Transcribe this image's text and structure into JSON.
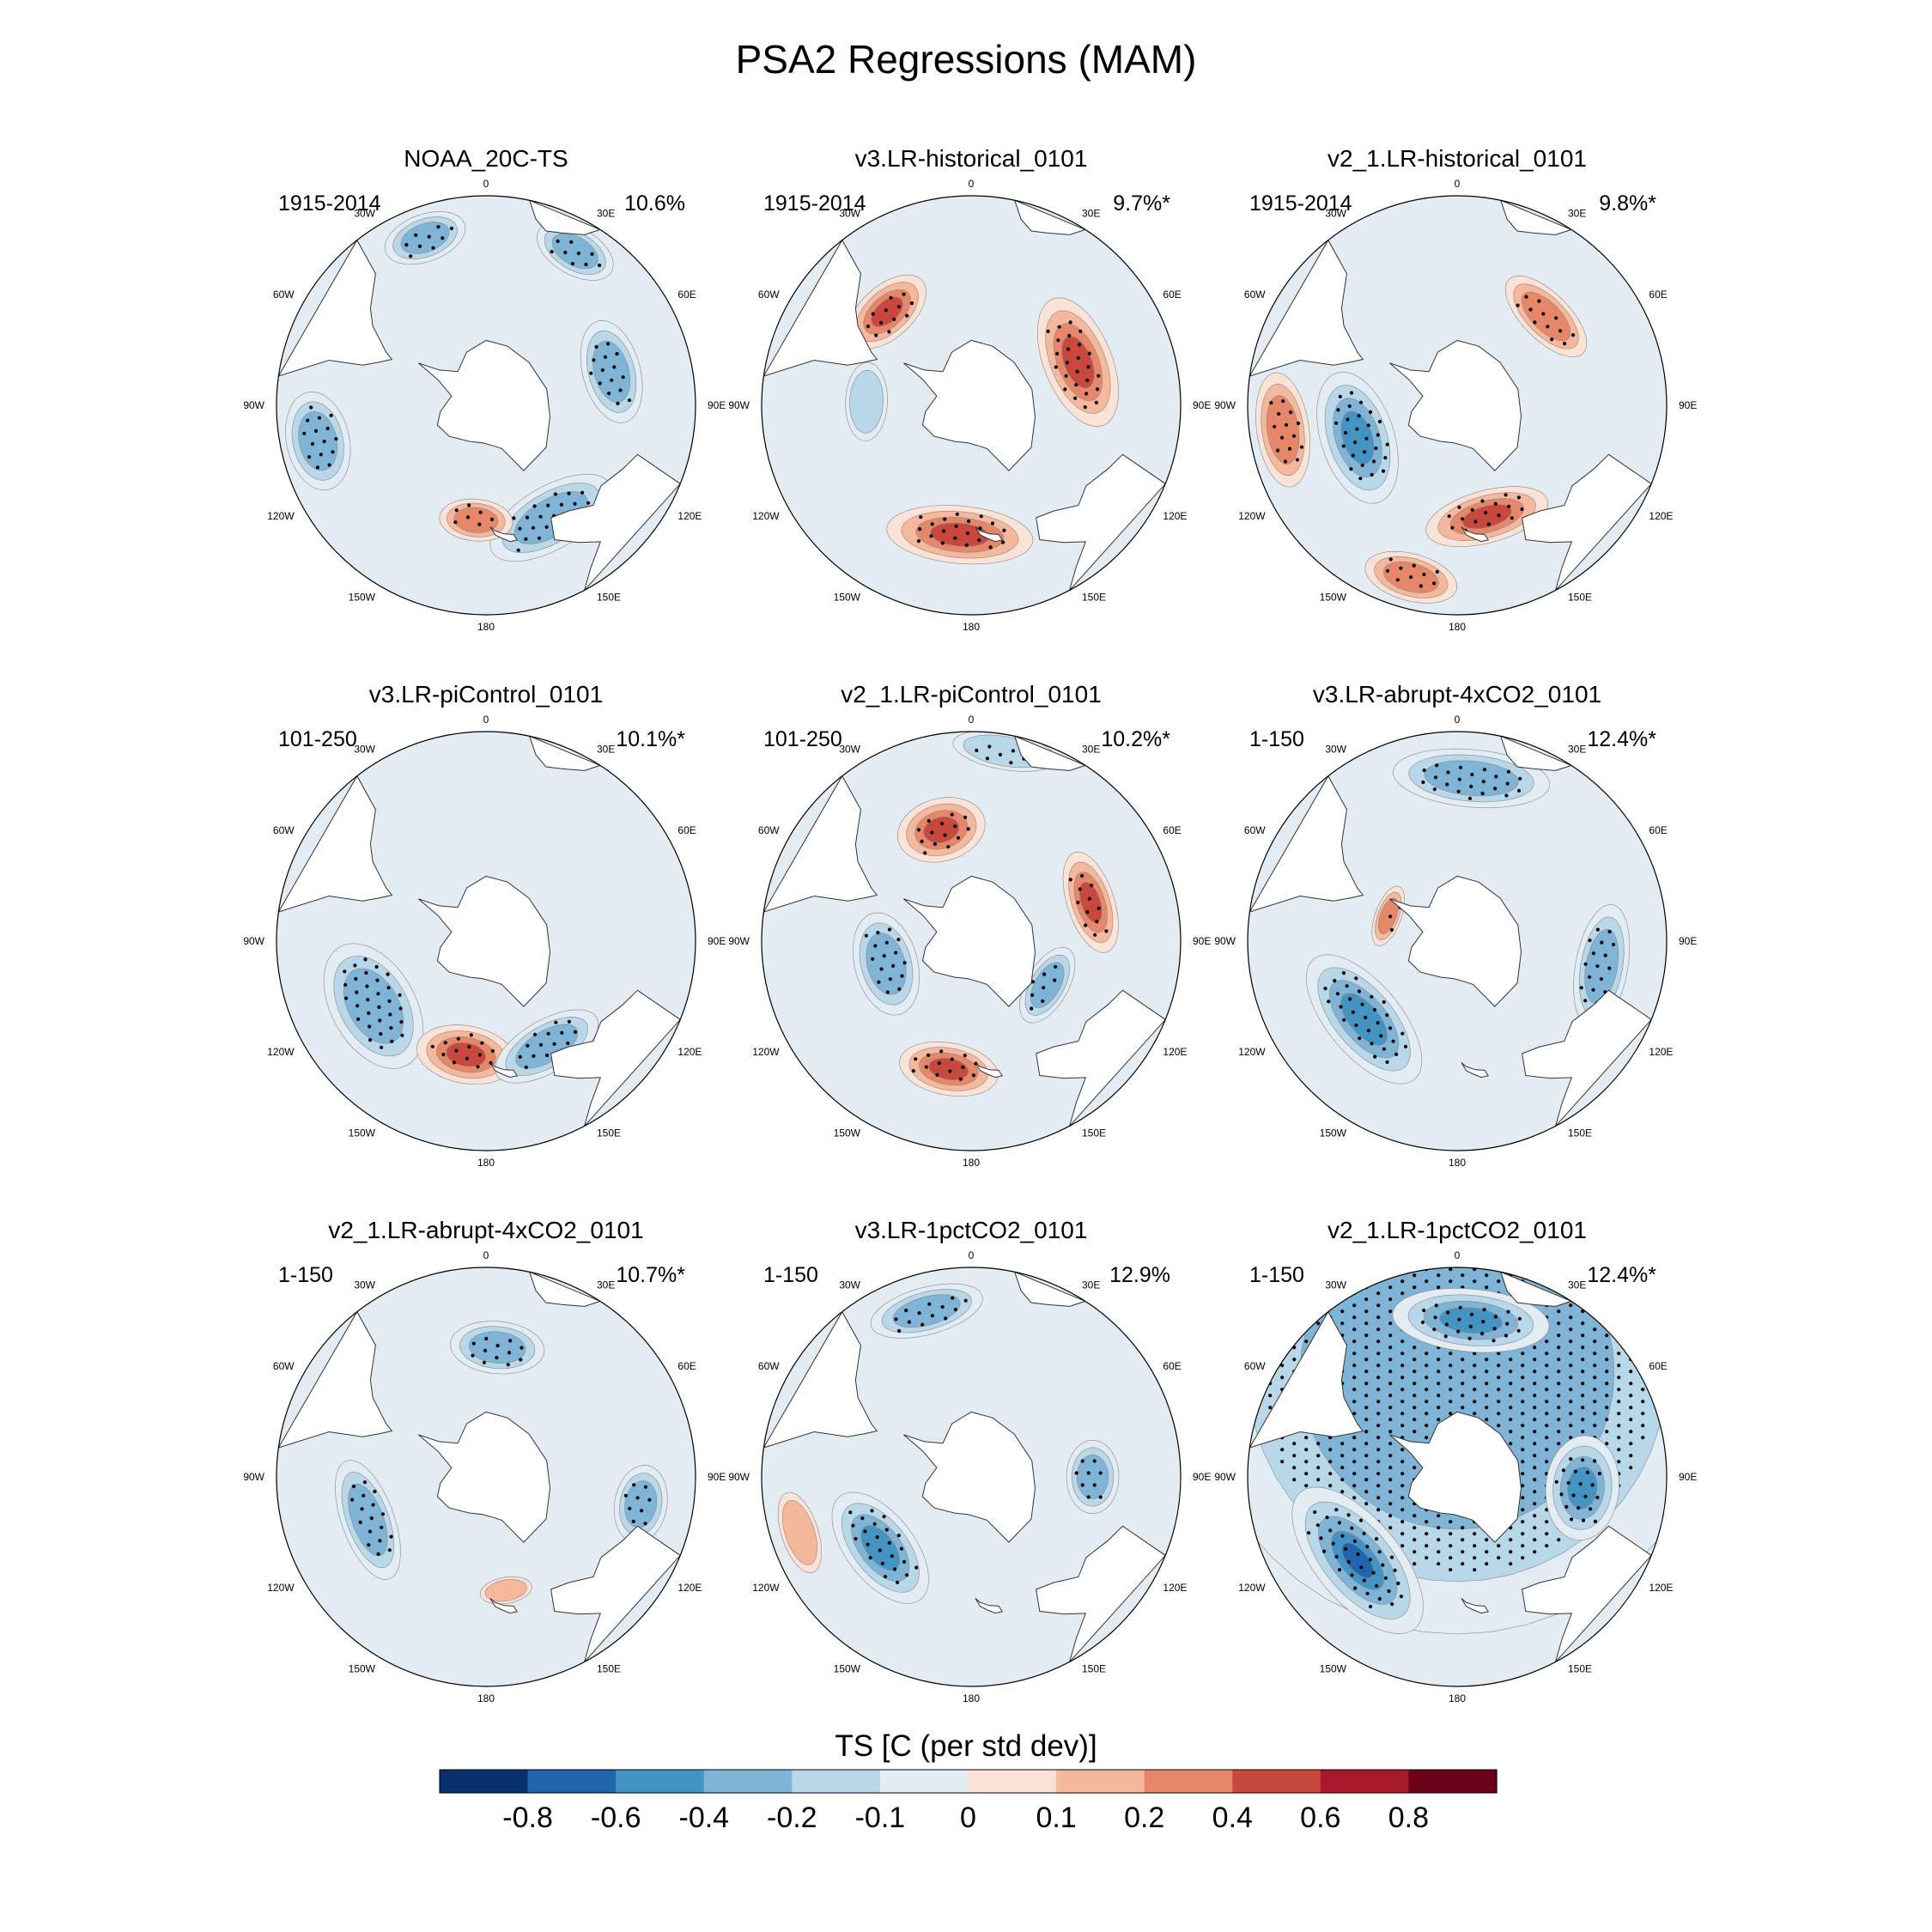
{
  "chart_data": {
    "type": "contour-map",
    "title": "PSA2 Regressions (MAM)",
    "projection": "south-polar-stereographic",
    "longitude_labels": [
      "0",
      "30E",
      "60E",
      "90E",
      "120E",
      "150E",
      "180",
      "150W",
      "120W",
      "90W",
      "60W",
      "30W"
    ],
    "colorbar": {
      "title": "TS [C (per std dev)]",
      "tick_labels": [
        "-0.8",
        "-0.6",
        "-0.4",
        "-0.2",
        "-0.1",
        "0",
        "0.1",
        "0.2",
        "0.4",
        "0.6",
        "0.8"
      ],
      "colors": [
        "#08306b",
        "#2166ac",
        "#4393c3",
        "#7fb4d6",
        "#b8d7e8",
        "#e3ecf3",
        "#fbe2d6",
        "#f5b89c",
        "#e58768",
        "#c9483e",
        "#a81a2b",
        "#6b0019"
      ]
    },
    "panels": [
      {
        "title": "NOAA_20C-TS",
        "period": "1915-2014",
        "variance": "10.6%",
        "blobs": [
          {
            "lon": 150,
            "r": 0.62,
            "a": 0.26,
            "b": 0.12,
            "value": -0.3,
            "stipple": true
          },
          {
            "lon": 185,
            "r": 0.55,
            "a": 0.14,
            "b": 0.08,
            "value": 0.3,
            "stipple": true
          },
          {
            "lon": 258,
            "r": 0.82,
            "a": 0.19,
            "b": 0.12,
            "value": -0.3,
            "stipple": true
          },
          {
            "lon": 75,
            "r": 0.62,
            "a": 0.2,
            "b": 0.11,
            "value": -0.25,
            "stipple": true
          },
          {
            "lon": 340,
            "r": 0.85,
            "a": 0.16,
            "b": 0.09,
            "value": -0.2,
            "stipple": true
          },
          {
            "lon": 30,
            "r": 0.85,
            "a": 0.16,
            "b": 0.09,
            "value": -0.2,
            "stipple": true
          }
        ]
      },
      {
        "title": "v3.LR-historical_0101",
        "period": "1915-2014",
        "variance": "9.7%*",
        "blobs": [
          {
            "lon": 68,
            "r": 0.55,
            "a": 0.26,
            "b": 0.13,
            "value": 0.5,
            "stipple": true
          },
          {
            "lon": 185,
            "r": 0.62,
            "a": 0.28,
            "b": 0.11,
            "value": 0.45,
            "stipple": true
          },
          {
            "lon": 318,
            "r": 0.6,
            "a": 0.18,
            "b": 0.1,
            "value": 0.4,
            "stipple": true
          },
          {
            "lon": 272,
            "r": 0.5,
            "a": 0.15,
            "b": 0.08,
            "value": -0.15,
            "stipple": false
          }
        ]
      },
      {
        "title": "v2_1.LR-historical_0101",
        "period": "1915-2014",
        "variance": "9.8%*",
        "blobs": [
          {
            "lon": 252,
            "r": 0.5,
            "a": 0.26,
            "b": 0.14,
            "value": -0.45,
            "stipple": true
          },
          {
            "lon": 262,
            "r": 0.84,
            "a": 0.22,
            "b": 0.1,
            "value": 0.35,
            "stipple": true
          },
          {
            "lon": 165,
            "r": 0.55,
            "a": 0.24,
            "b": 0.1,
            "value": 0.4,
            "stipple": true
          },
          {
            "lon": 195,
            "r": 0.85,
            "a": 0.18,
            "b": 0.09,
            "value": 0.3,
            "stipple": true
          },
          {
            "lon": 45,
            "r": 0.6,
            "a": 0.2,
            "b": 0.09,
            "value": 0.3,
            "stipple": true
          }
        ]
      },
      {
        "title": "v3.LR-piControl_0101",
        "period": "101-250",
        "variance": "10.1%*",
        "blobs": [
          {
            "lon": 240,
            "r": 0.62,
            "a": 0.26,
            "b": 0.16,
            "value": -0.25,
            "stipple": true
          },
          {
            "lon": 190,
            "r": 0.55,
            "a": 0.19,
            "b": 0.11,
            "value": 0.5,
            "stipple": true
          },
          {
            "lon": 150,
            "r": 0.58,
            "a": 0.22,
            "b": 0.1,
            "value": -0.2,
            "stipple": true
          }
        ]
      },
      {
        "title": "v2_1.LR-piControl_0101",
        "period": "101-250",
        "variance": "10.2%*",
        "blobs": [
          {
            "lon": 345,
            "r": 0.55,
            "a": 0.17,
            "b": 0.12,
            "value": 0.5,
            "stipple": true
          },
          {
            "lon": 72,
            "r": 0.6,
            "a": 0.2,
            "b": 0.09,
            "value": 0.4,
            "stipple": true
          },
          {
            "lon": 190,
            "r": 0.62,
            "a": 0.19,
            "b": 0.1,
            "value": 0.4,
            "stipple": true
          },
          {
            "lon": 255,
            "r": 0.42,
            "a": 0.2,
            "b": 0.12,
            "value": -0.2,
            "stipple": true
          },
          {
            "lon": 10,
            "r": 0.92,
            "a": 0.2,
            "b": 0.07,
            "value": -0.15,
            "stipple": true
          },
          {
            "lon": 120,
            "r": 0.42,
            "a": 0.16,
            "b": 0.08,
            "value": -0.2,
            "stipple": true
          }
        ]
      },
      {
        "title": "v3.LR-abrupt-4xCO2_0101",
        "period": "1-150",
        "variance": "12.4%*",
        "blobs": [
          {
            "lon": 230,
            "r": 0.58,
            "a": 0.3,
            "b": 0.14,
            "value": -0.45,
            "stipple": true
          },
          {
            "lon": 5,
            "r": 0.78,
            "a": 0.3,
            "b": 0.11,
            "value": -0.3,
            "stipple": true
          },
          {
            "lon": 100,
            "r": 0.7,
            "a": 0.24,
            "b": 0.1,
            "value": -0.3,
            "stipple": true
          },
          {
            "lon": 290,
            "r": 0.35,
            "a": 0.12,
            "b": 0.05,
            "value": 0.3,
            "stipple": true
          }
        ]
      },
      {
        "title": "v2_1.LR-abrupt-4xCO2_0101",
        "period": "1-150",
        "variance": "10.7%*",
        "blobs": [
          {
            "lon": 250,
            "r": 0.6,
            "a": 0.24,
            "b": 0.1,
            "value": -0.35,
            "stipple": true
          },
          {
            "lon": 5,
            "r": 0.62,
            "a": 0.18,
            "b": 0.1,
            "value": -0.35,
            "stipple": true
          },
          {
            "lon": 100,
            "r": 0.75,
            "a": 0.15,
            "b": 0.1,
            "value": -0.3,
            "stipple": true
          },
          {
            "lon": 170,
            "r": 0.55,
            "a": 0.1,
            "b": 0.05,
            "value": 0.15,
            "stipple": false
          }
        ]
      },
      {
        "title": "v3.LR-1pctCO2_0101",
        "period": "1-150",
        "variance": "12.9%",
        "blobs": [
          {
            "lon": 232,
            "r": 0.55,
            "a": 0.25,
            "b": 0.13,
            "value": -0.4,
            "stipple": true
          },
          {
            "lon": 345,
            "r": 0.82,
            "a": 0.22,
            "b": 0.09,
            "value": -0.3,
            "stipple": true
          },
          {
            "lon": 90,
            "r": 0.58,
            "a": 0.14,
            "b": 0.1,
            "value": -0.3,
            "stipple": true
          },
          {
            "lon": 252,
            "r": 0.86,
            "a": 0.16,
            "b": 0.07,
            "value": 0.15,
            "stipple": false
          }
        ]
      },
      {
        "title": "v2_1.LR-1pctCO2_0101",
        "period": "1-150",
        "variance": "12.4%*",
        "blobs": [
          {
            "lon": 0,
            "r": 0.5,
            "a": 1.0,
            "b": 1.0,
            "value": -0.25,
            "stipple": true
          },
          {
            "lon": 230,
            "r": 0.62,
            "a": 0.34,
            "b": 0.16,
            "value": -0.55,
            "stipple": true
          },
          {
            "lon": 5,
            "r": 0.75,
            "a": 0.3,
            "b": 0.12,
            "value": -0.45,
            "stipple": true
          },
          {
            "lon": 95,
            "r": 0.6,
            "a": 0.2,
            "b": 0.14,
            "value": -0.5,
            "stipple": true
          }
        ]
      }
    ]
  }
}
